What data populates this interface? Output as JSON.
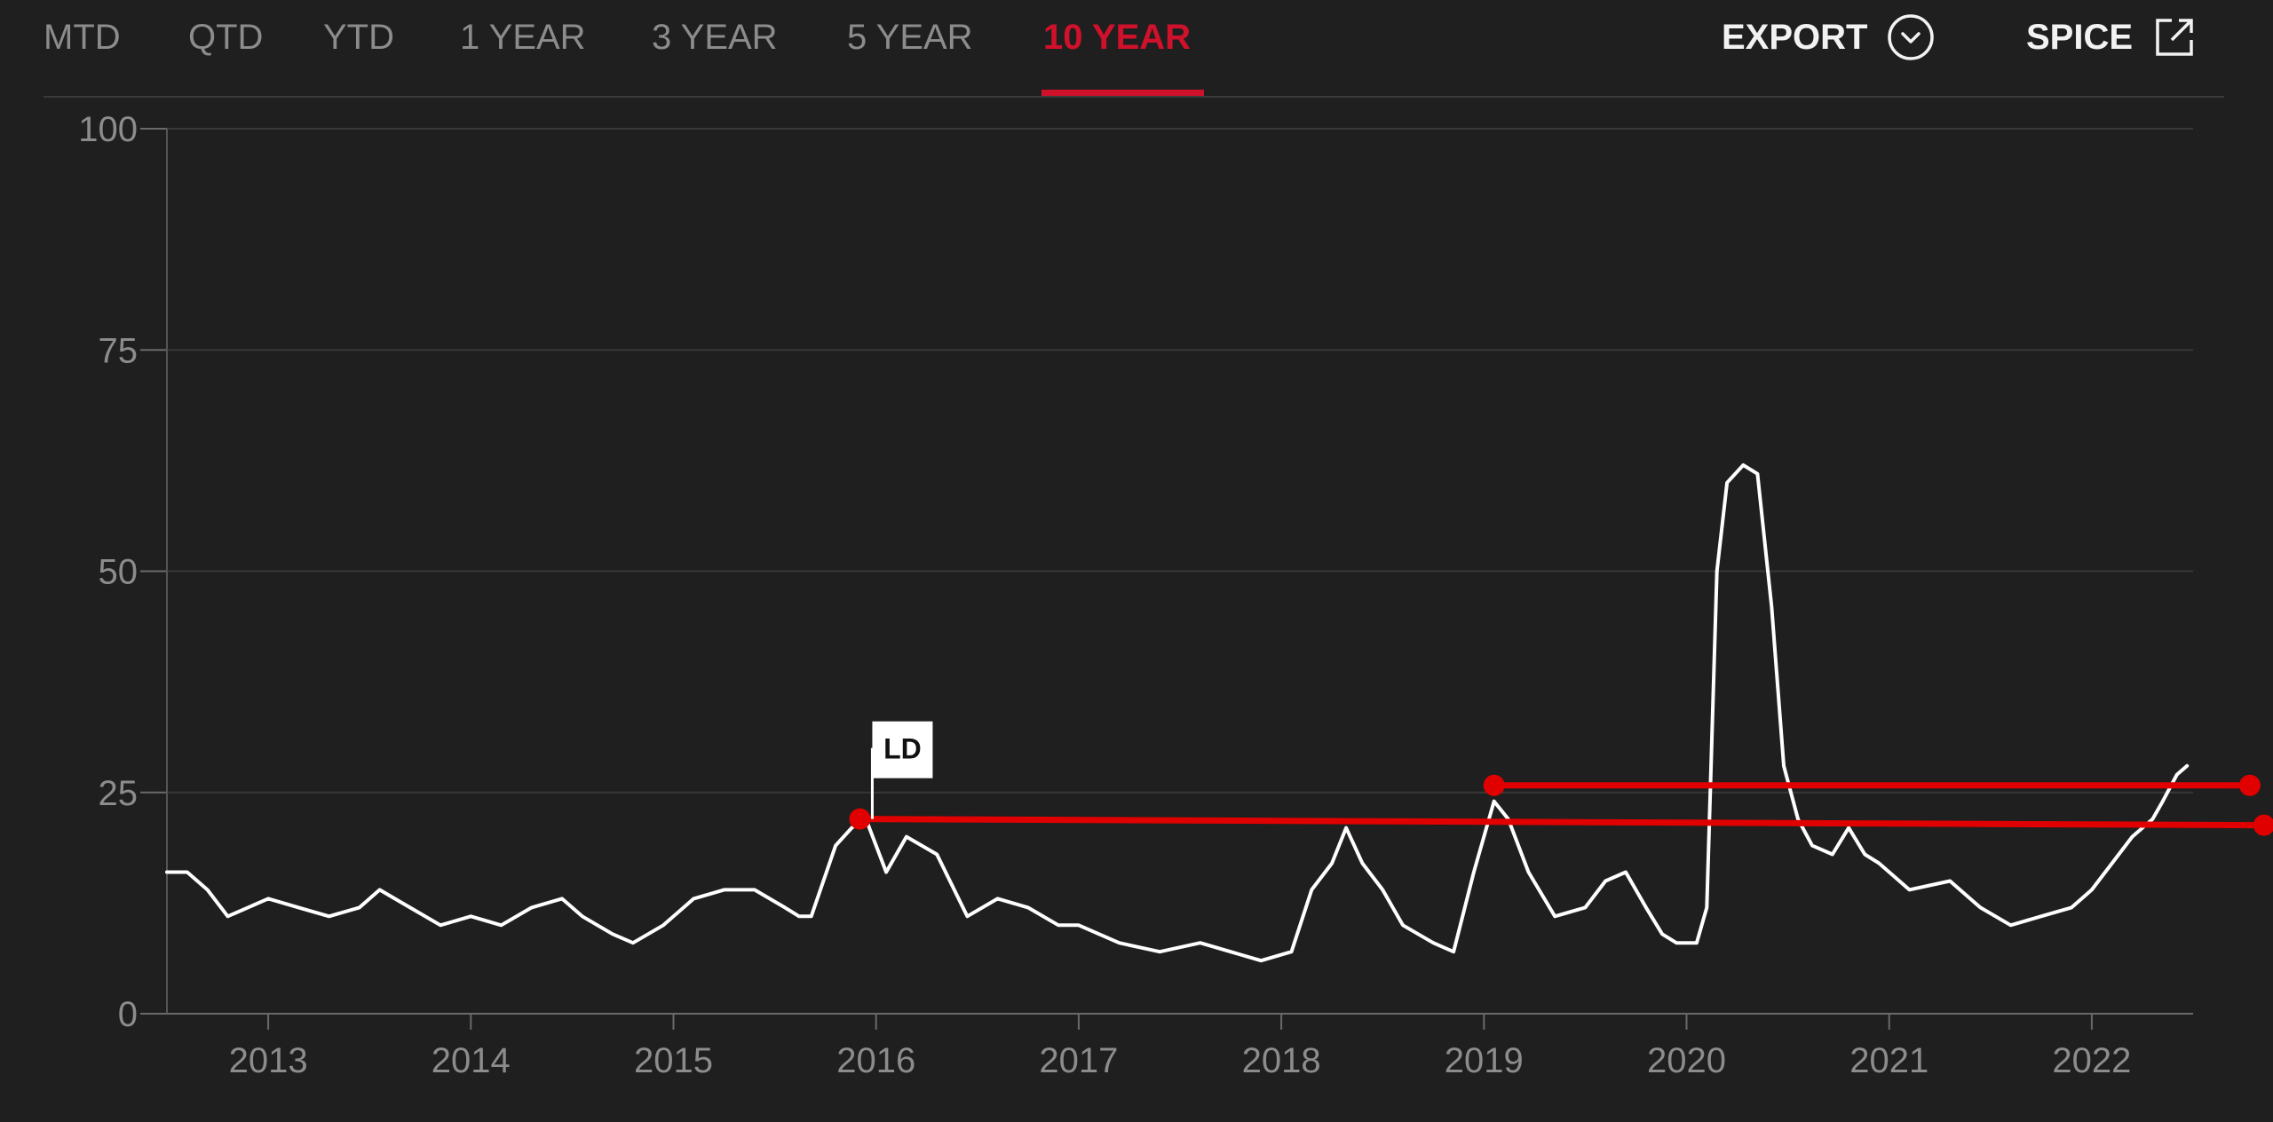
{
  "tabs": [
    {
      "label": "MTD",
      "active": false
    },
    {
      "label": "QTD",
      "active": false
    },
    {
      "label": "YTD",
      "active": false
    },
    {
      "label": "1 YEAR",
      "active": false
    },
    {
      "label": "3 YEAR",
      "active": false
    },
    {
      "label": "5 YEAR",
      "active": false
    },
    {
      "label": "10 YEAR",
      "active": true
    }
  ],
  "actions": {
    "export_label": "EXPORT",
    "export_icon": "chevron-down-circle-icon",
    "spice_label": "SPICE",
    "spice_icon": "external-link-icon"
  },
  "colors": {
    "background": "#1f1f1f",
    "accent": "#d0112b",
    "line": "#ffffff",
    "annotation": "#e00000"
  },
  "chart_data": {
    "type": "line",
    "title": "",
    "xlabel": "",
    "ylabel": "",
    "ylim": [
      0,
      100
    ],
    "xlim": [
      2012.5,
      2022.5
    ],
    "yticks": [
      0,
      25,
      50,
      75,
      100
    ],
    "xticks": [
      2013,
      2014,
      2015,
      2016,
      2017,
      2018,
      2019,
      2020,
      2021,
      2022
    ],
    "grid": true,
    "series": [
      {
        "x": [
          2012.5,
          2012.6,
          2012.7,
          2012.8,
          2012.9,
          2013.0,
          2013.15,
          2013.3,
          2013.45,
          2013.55,
          2013.7,
          2013.85,
          2014.0,
          2014.15,
          2014.3,
          2014.45,
          2014.55,
          2014.7,
          2014.8,
          2014.95,
          2015.1,
          2015.25,
          2015.4,
          2015.55,
          2015.62,
          2015.68,
          2015.8,
          2015.88,
          2015.95,
          2016.05,
          2016.15,
          2016.3,
          2016.45,
          2016.6,
          2016.75,
          2016.9,
          2017.0,
          2017.2,
          2017.4,
          2017.6,
          2017.75,
          2017.9,
          2018.05,
          2018.15,
          2018.25,
          2018.32,
          2018.4,
          2018.5,
          2018.6,
          2018.75,
          2018.85,
          2018.95,
          2019.05,
          2019.12,
          2019.22,
          2019.35,
          2019.5,
          2019.6,
          2019.7,
          2019.8,
          2019.88,
          2019.95,
          2020.05,
          2020.1,
          2020.15,
          2020.2,
          2020.28,
          2020.35,
          2020.42,
          2020.48,
          2020.55,
          2020.62,
          2020.72,
          2020.8,
          2020.88,
          2020.95,
          2021.1,
          2021.3,
          2021.45,
          2021.6,
          2021.75,
          2021.9,
          2022.0,
          2022.1,
          2022.2,
          2022.3,
          2022.35,
          2022.42,
          2022.47
        ],
        "values": [
          16,
          16,
          14,
          11,
          12,
          13,
          12,
          11,
          12,
          14,
          12,
          10,
          11,
          10,
          12,
          13,
          11,
          9,
          8,
          10,
          13,
          14,
          14,
          12,
          11,
          11,
          19,
          21,
          22,
          16,
          20,
          18,
          11,
          13,
          12,
          10,
          10,
          8,
          7,
          8,
          7,
          6,
          7,
          14,
          17,
          21,
          17,
          14,
          10,
          8,
          7,
          16,
          24,
          22,
          16,
          11,
          12,
          15,
          16,
          12,
          9,
          8,
          8,
          12,
          50,
          60,
          62,
          61,
          46,
          28,
          22,
          19,
          18,
          21,
          18,
          17,
          14,
          15,
          12,
          10,
          11,
          12,
          14,
          17,
          20,
          22,
          24,
          27,
          28
        ]
      }
    ],
    "annotations": {
      "label": "LD",
      "label_point": [
        2015.92,
        22
      ],
      "lines": [
        {
          "from": [
            2015.92,
            22
          ],
          "to": [
            2022.85,
            21.3
          ]
        },
        {
          "from": [
            2019.05,
            25.8
          ],
          "to": [
            2022.78,
            25.8
          ]
        }
      ]
    }
  }
}
